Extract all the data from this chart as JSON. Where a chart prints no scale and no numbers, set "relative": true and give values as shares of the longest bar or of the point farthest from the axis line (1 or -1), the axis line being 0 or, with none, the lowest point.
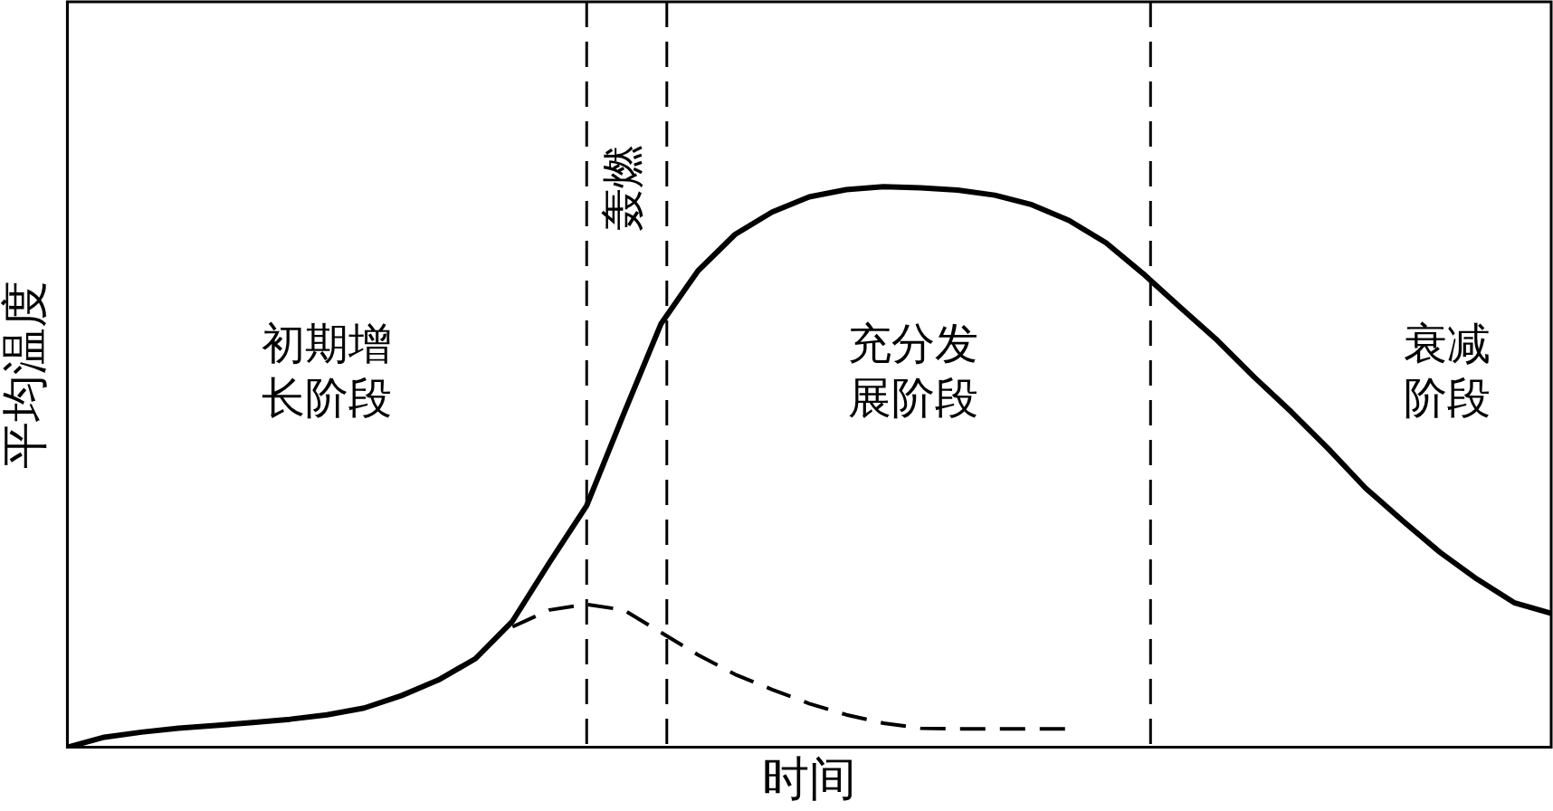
{
  "chart_data": {
    "type": "line",
    "relative": true,
    "xlabel": "时间",
    "ylabel": "平均温度",
    "legend": false,
    "marker": "none",
    "categories": [
      null,
      null,
      null,
      null,
      null,
      null,
      null,
      null,
      null,
      null,
      null,
      null,
      null,
      null,
      null,
      null,
      null,
      null,
      null,
      null,
      null,
      null,
      null,
      null,
      null,
      null,
      null,
      null,
      null,
      null,
      null,
      null,
      null,
      null,
      null,
      null,
      null,
      null,
      null,
      null,
      null
    ],
    "series": [
      {
        "color": "#000000",
        "line_style": "solid",
        "values": [
          0,
          0.018,
          0.027,
          0.034,
          0.039,
          0.044,
          0.05,
          0.058,
          0.07,
          0.092,
          0.12,
          0.158,
          0.225,
          0.33,
          0.431,
          0.595,
          0.755,
          0.85,
          0.915,
          0.955,
          0.982,
          0.995,
          1,
          0.998,
          0.994,
          0.985,
          0.968,
          0.94,
          0.9,
          0.845,
          0.785,
          0.726,
          0.66,
          0.598,
          0.532,
          0.462,
          0.404,
          0.348,
          0.3,
          0.258,
          0.239
        ]
      },
      {
        "color": "#000000",
        "line_style": "dashed",
        "values": [
          null,
          null,
          null,
          null,
          null,
          null,
          null,
          null,
          null,
          null,
          null,
          null,
          0.215,
          0.245,
          0.255,
          0.245,
          0.205,
          0.165,
          0.13,
          0.103,
          0.078,
          0.058,
          0.043,
          0.034,
          0.033,
          0.033,
          0.033,
          0.033,
          null,
          null,
          null,
          null,
          null,
          null,
          null,
          null,
          null,
          null,
          null,
          null,
          null
        ]
      }
    ],
    "ref_lines": [
      {
        "axis": "x",
        "line_style": "dashed",
        "color": "#000000"
      },
      {
        "axis": "x",
        "line_style": "dashed",
        "color": "#000000"
      },
      {
        "axis": "x",
        "line_style": "dashed",
        "color": "#000000"
      }
    ],
    "annotations": [
      "初期增长阶段",
      "轰燃",
      "充分发展阶段",
      "衰减阶段"
    ]
  }
}
